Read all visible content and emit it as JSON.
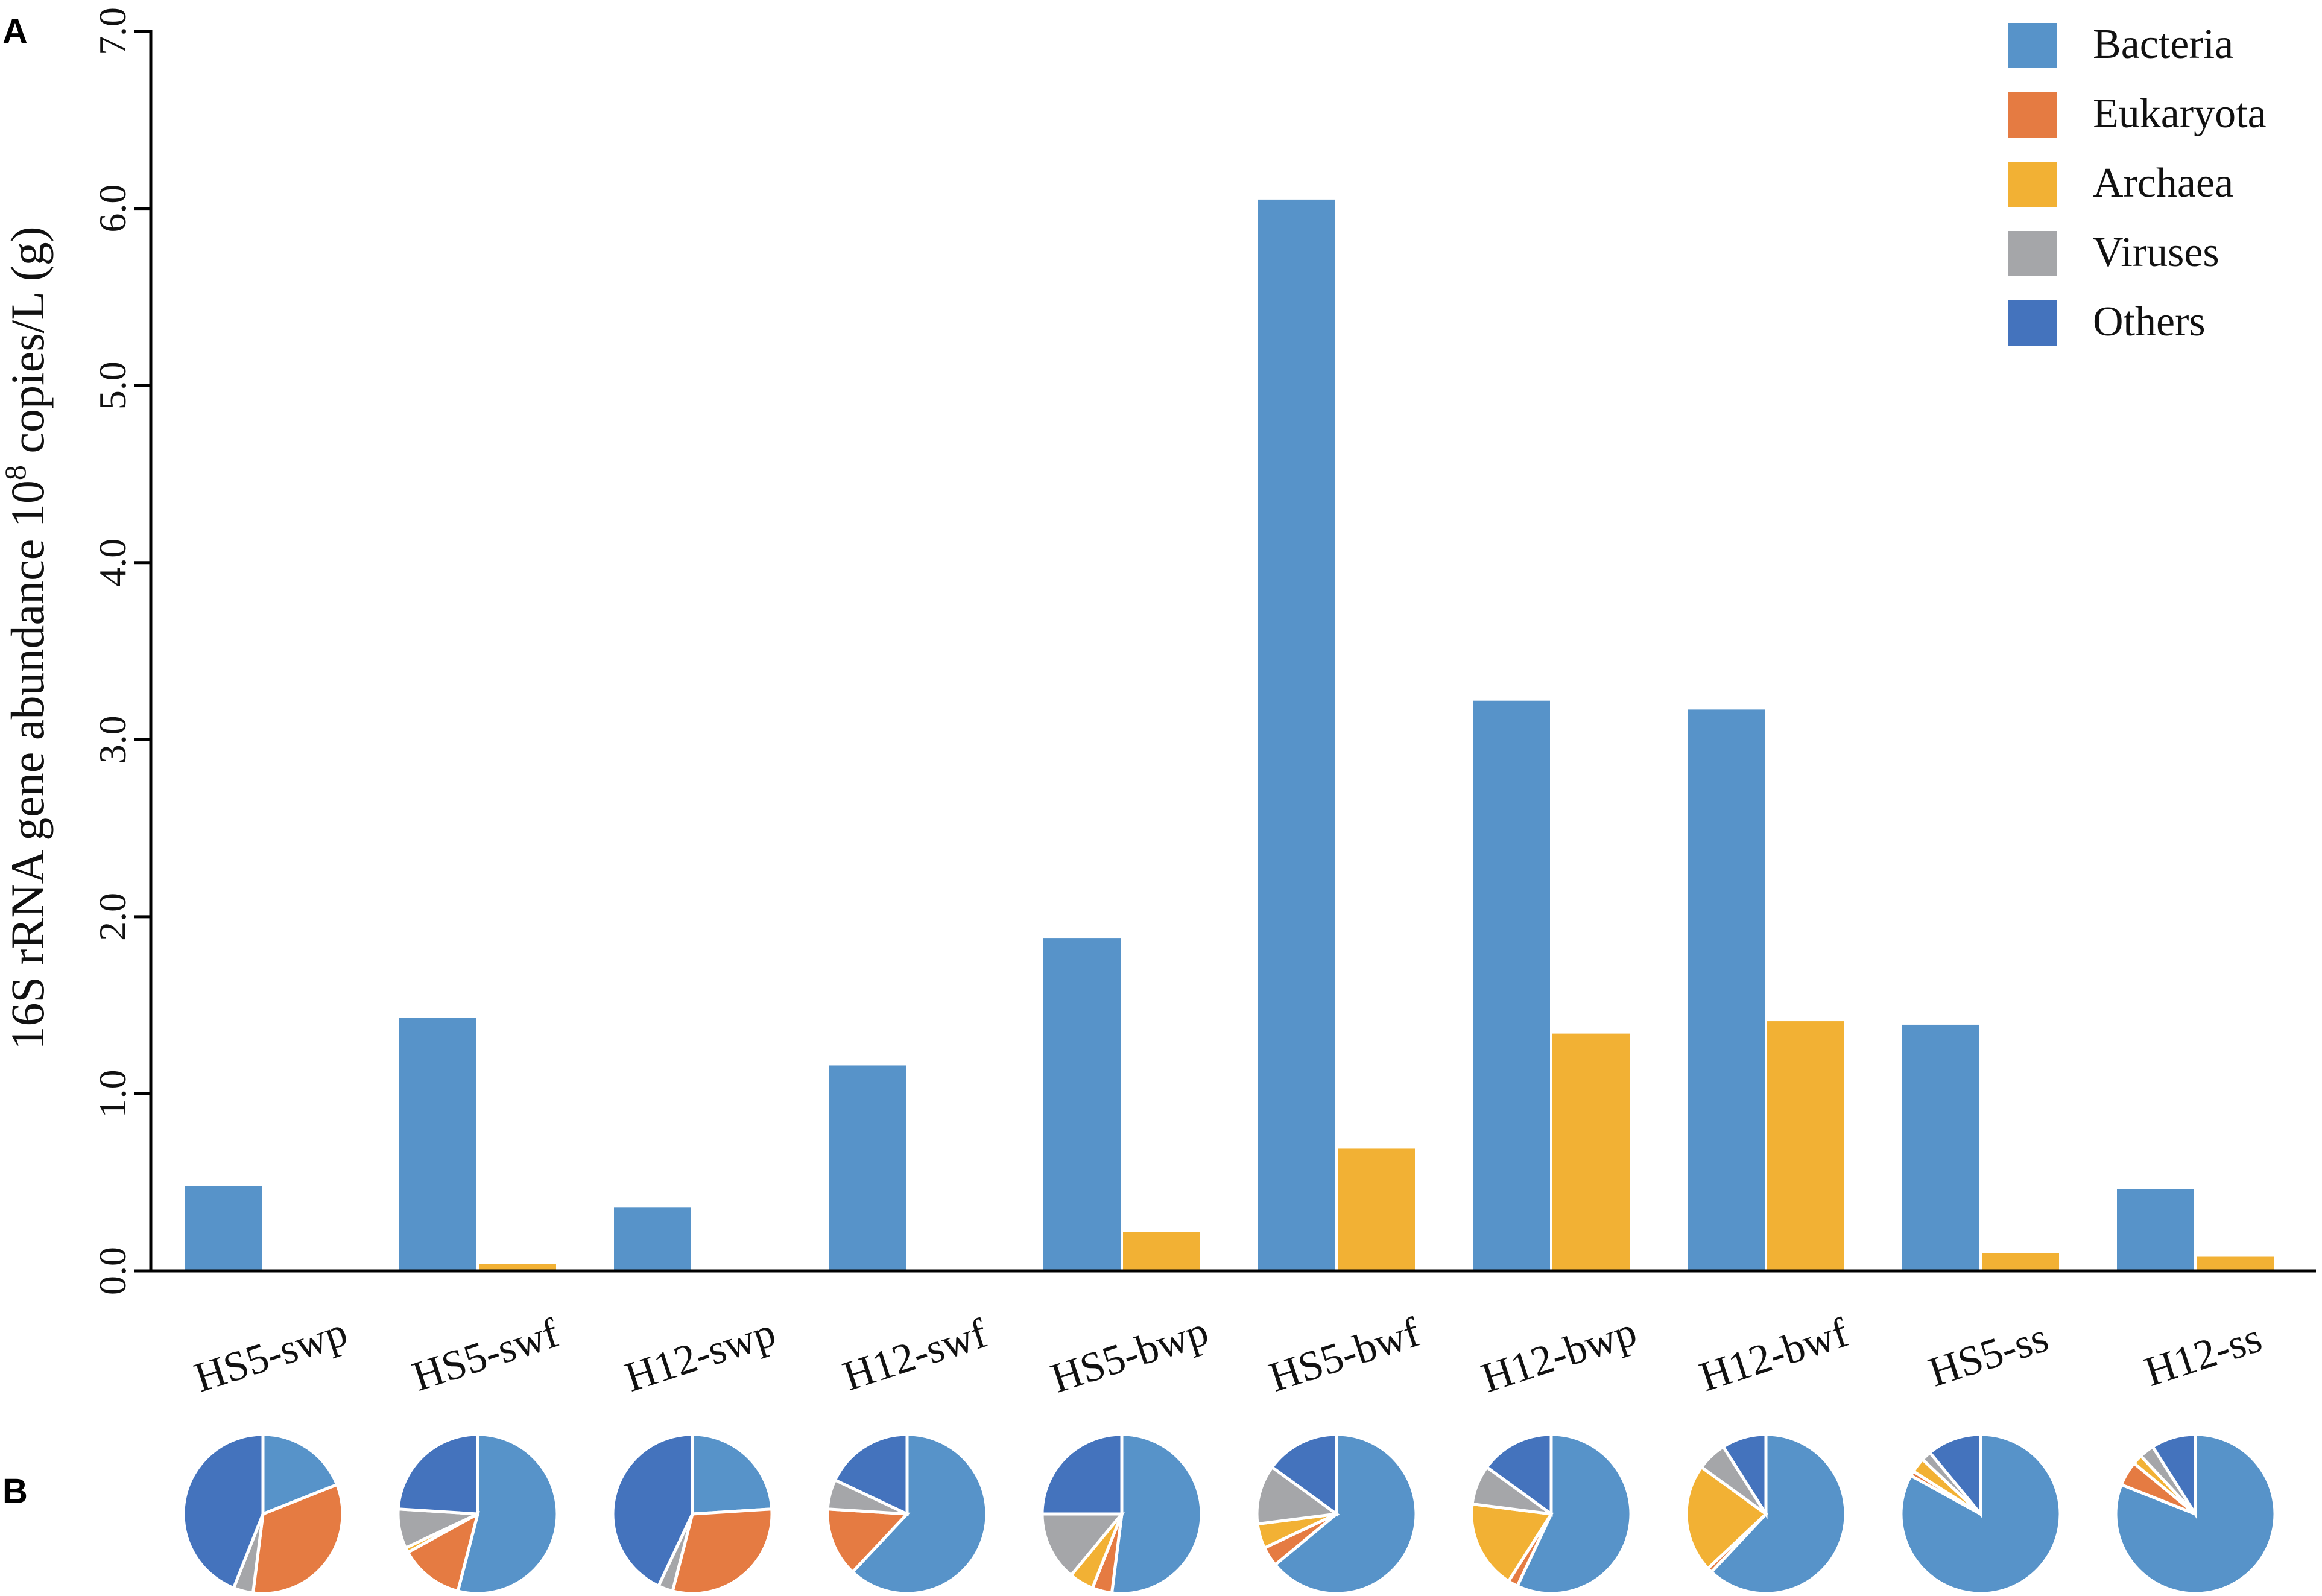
{
  "panels": {
    "a": "A",
    "b": "B"
  },
  "chart_data": {
    "type": "bar",
    "ylabel": "16S rRNA gene abundance 10",
    "ylabel_sup": "8",
    "ylabel_suffix": " copies/L (g)",
    "ylim": [
      0,
      7.0
    ],
    "yticks": [
      "0.0",
      "1.0",
      "2.0",
      "3.0",
      "4.0",
      "5.0",
      "6.0",
      "7.0"
    ],
    "grid": false,
    "legend_position": "top-right",
    "categories": [
      "HS5-swp",
      "HS5-swf",
      "H12-swp",
      "H12-swf",
      "HS5-bwp",
      "HS5-bwf",
      "H12-bwp",
      "H12-bwf",
      "HS5-ss",
      "H12-ss"
    ],
    "series": [
      {
        "name": "Bacteria",
        "color": "#5793c9",
        "values": [
          0.48,
          1.43,
          0.36,
          1.16,
          1.88,
          6.05,
          3.22,
          3.17,
          1.39,
          0.46
        ]
      },
      {
        "name": "Archaea",
        "color": "#f2b134",
        "values": [
          0.0,
          0.04,
          0.0,
          0.0,
          0.22,
          0.69,
          1.34,
          1.41,
          0.1,
          0.08
        ]
      }
    ],
    "legend": [
      {
        "name": "Bacteria",
        "color": "#5793c9"
      },
      {
        "name": "Eukaryota",
        "color": "#e57b42"
      },
      {
        "name": "Archaea",
        "color": "#f2b134"
      },
      {
        "name": "Viruses",
        "color": "#a5a6a9"
      },
      {
        "name": "Others",
        "color": "#4473bd"
      }
    ],
    "pie_order": [
      "Bacteria",
      "Eukaryota",
      "Archaea",
      "Viruses",
      "Others"
    ],
    "pies": [
      {
        "category": "HS5-swp",
        "values": [
          19,
          33,
          0,
          4,
          44
        ]
      },
      {
        "category": "HS5-swf",
        "values": [
          54,
          13,
          1,
          8,
          24
        ]
      },
      {
        "category": "H12-swp",
        "values": [
          24,
          30,
          0,
          3,
          43
        ]
      },
      {
        "category": "H12-swf",
        "values": [
          62,
          14,
          0,
          6,
          18
        ]
      },
      {
        "category": "HS5-bwp",
        "values": [
          52,
          4,
          5,
          14,
          25
        ]
      },
      {
        "category": "HS5-bwf",
        "values": [
          64,
          4,
          5,
          12,
          15
        ]
      },
      {
        "category": "H12-bwp",
        "values": [
          57,
          2,
          18,
          8,
          15
        ]
      },
      {
        "category": "H12-bwf",
        "values": [
          62,
          1,
          22,
          6,
          9
        ]
      },
      {
        "category": "HS5-ss",
        "values": [
          83,
          1,
          3,
          2,
          11
        ]
      },
      {
        "category": "H12-ss",
        "values": [
          81,
          5,
          2,
          3,
          9
        ]
      }
    ]
  }
}
